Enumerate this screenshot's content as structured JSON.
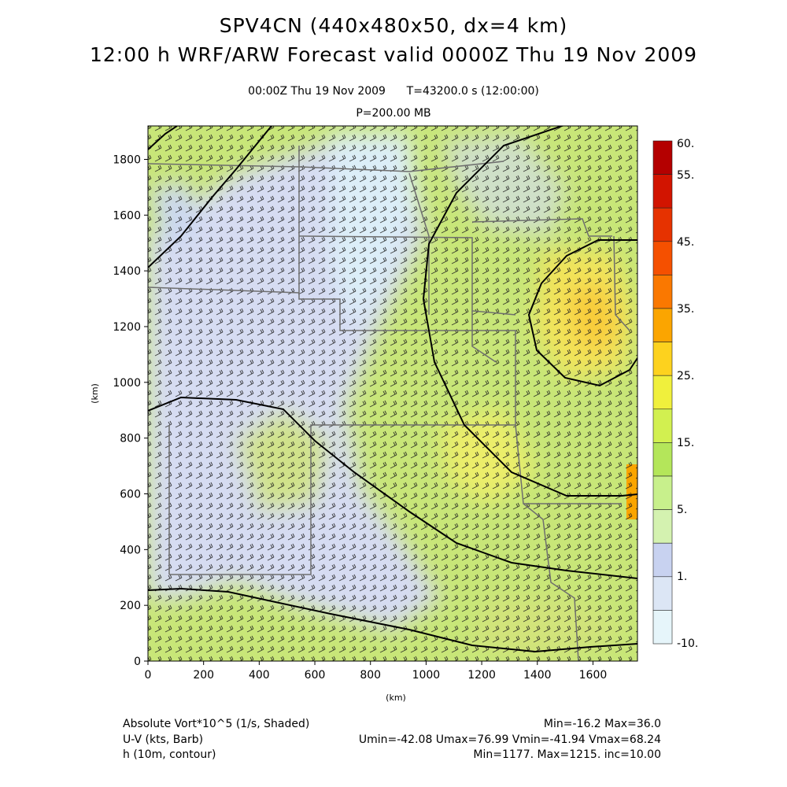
{
  "title_line1": "SPV4CN (440x480x50, dx=4 km)",
  "title_line2": "12:00 h WRF/ARW Forecast valid 0000Z Thu 19 Nov 2009",
  "valid_time": "00:00Z Thu 19 Nov 2009",
  "model_time": "T=43200.0 s (12:00:00)",
  "pressure_level": "P=200.00 MB",
  "chart_data": {
    "type": "heatmap",
    "xlabel": "(km)",
    "ylabel": "(km)",
    "xlim": [
      0,
      1760
    ],
    "ylim": [
      0,
      1920
    ],
    "x_ticks": [
      0,
      200,
      400,
      600,
      800,
      1000,
      1200,
      1400,
      1600
    ],
    "y_ticks": [
      0,
      200,
      400,
      600,
      800,
      1000,
      1200,
      1400,
      1600,
      1800
    ],
    "x_tick_labels": [
      "0",
      "200",
      "400",
      "600",
      "800",
      "1000",
      "1200",
      "1400",
      "1600"
    ],
    "y_tick_labels": [
      "0",
      "200",
      "400",
      "600",
      "800",
      "1000",
      "1200",
      "1400",
      "1600",
      "1800"
    ],
    "colorbar": {
      "labels": [
        "60.",
        "55.",
        "45.",
        "35.",
        "25.",
        "15.",
        "5.",
        "1.",
        "-10."
      ],
      "colors": [
        "#b40000",
        "#d21400",
        "#e63200",
        "#f55000",
        "#fa7800",
        "#fba500",
        "#fdd21e",
        "#f0f03c",
        "#d2f050",
        "#b4e65a",
        "#c8f08c",
        "#d4f2b0",
        "#c8d2f0",
        "#dce6f5",
        "#e6f5fa"
      ]
    },
    "fields": [
      {
        "name": "Absolute Vort*10^5 (1/s, Shaded)",
        "stats": "Min=-16.2 Max=36.0"
      },
      {
        "name": "U-V (kts, Barb)",
        "stats": "Umin=-42.08 Umax=76.99 Vmin=-41.94 Vmax=68.24"
      },
      {
        "name": "h (10m, contour)",
        "stats": "Min=1177. Max=1215. inc=10.00"
      }
    ]
  }
}
